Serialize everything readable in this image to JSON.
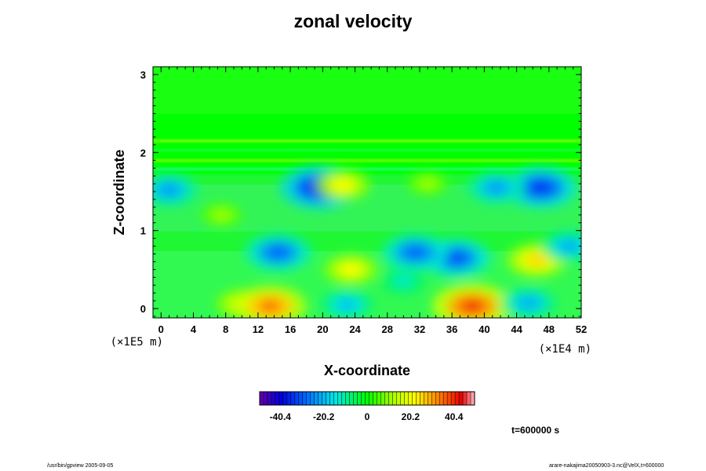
{
  "title": "zonal velocity",
  "time_label": "t=600000 s",
  "footer": {
    "left": "/usr/bin/gpview 2005-09-05",
    "right": "arare-nakajima20050903-3.nc@VelX,t=600000"
  },
  "colors": {
    "background_field": "#00ff00",
    "negative_extreme": "#2222cc",
    "positive_extreme": "#ff2020"
  },
  "chart_data": {
    "type": "heatmap",
    "title": "zonal velocity",
    "xlabel": "X-coordinate",
    "ylabel": "Z-coordinate",
    "x_unit": "(×1E4 m)",
    "y_unit": "(×1E5 m)",
    "xlim": [
      -1.0,
      52.0
    ],
    "ylim": [
      -0.12,
      3.1
    ],
    "x_ticks": [
      "0",
      "4",
      "8",
      "12",
      "16",
      "20",
      "24",
      "28",
      "32",
      "36",
      "40",
      "44",
      "48",
      "52"
    ],
    "y_ticks": [
      "0",
      "1",
      "2",
      "3"
    ],
    "colorbar": {
      "range": [
        -50,
        50
      ],
      "tick_values": [
        -40.4,
        -20.2,
        0,
        20.2,
        40.4
      ],
      "tick_labels": [
        "-40.4",
        "-20.2",
        "0",
        "20.2",
        "40.4"
      ]
    },
    "features": [
      {
        "x": 14.5,
        "z": 0.72,
        "value": -30
      },
      {
        "x": 19.5,
        "z": 1.55,
        "value": -38
      },
      {
        "x": 22.5,
        "z": 1.58,
        "value": 22
      },
      {
        "x": 10.0,
        "z": 0.06,
        "value": 20
      },
      {
        "x": 13.5,
        "z": 0.03,
        "value": 35
      },
      {
        "x": 23.5,
        "z": 0.5,
        "value": 22
      },
      {
        "x": 23.0,
        "z": 0.05,
        "value": -20
      },
      {
        "x": 38.5,
        "z": 0.03,
        "value": 40
      },
      {
        "x": 36.5,
        "z": 0.65,
        "value": -32
      },
      {
        "x": 31.5,
        "z": 0.72,
        "value": -30
      },
      {
        "x": 46.5,
        "z": 0.62,
        "value": 26
      },
      {
        "x": 45.5,
        "z": 0.07,
        "value": -22
      },
      {
        "x": 47.0,
        "z": 1.55,
        "value": -35
      },
      {
        "x": 41.5,
        "z": 1.55,
        "value": -24
      },
      {
        "x": 1.0,
        "z": 1.52,
        "value": -24
      },
      {
        "x": 50.5,
        "z": 0.8,
        "value": -22
      },
      {
        "x": 30.0,
        "z": 0.35,
        "value": -14
      },
      {
        "x": 7.5,
        "z": 1.2,
        "value": 12
      },
      {
        "x": 33.0,
        "z": 1.6,
        "value": 12
      }
    ]
  }
}
